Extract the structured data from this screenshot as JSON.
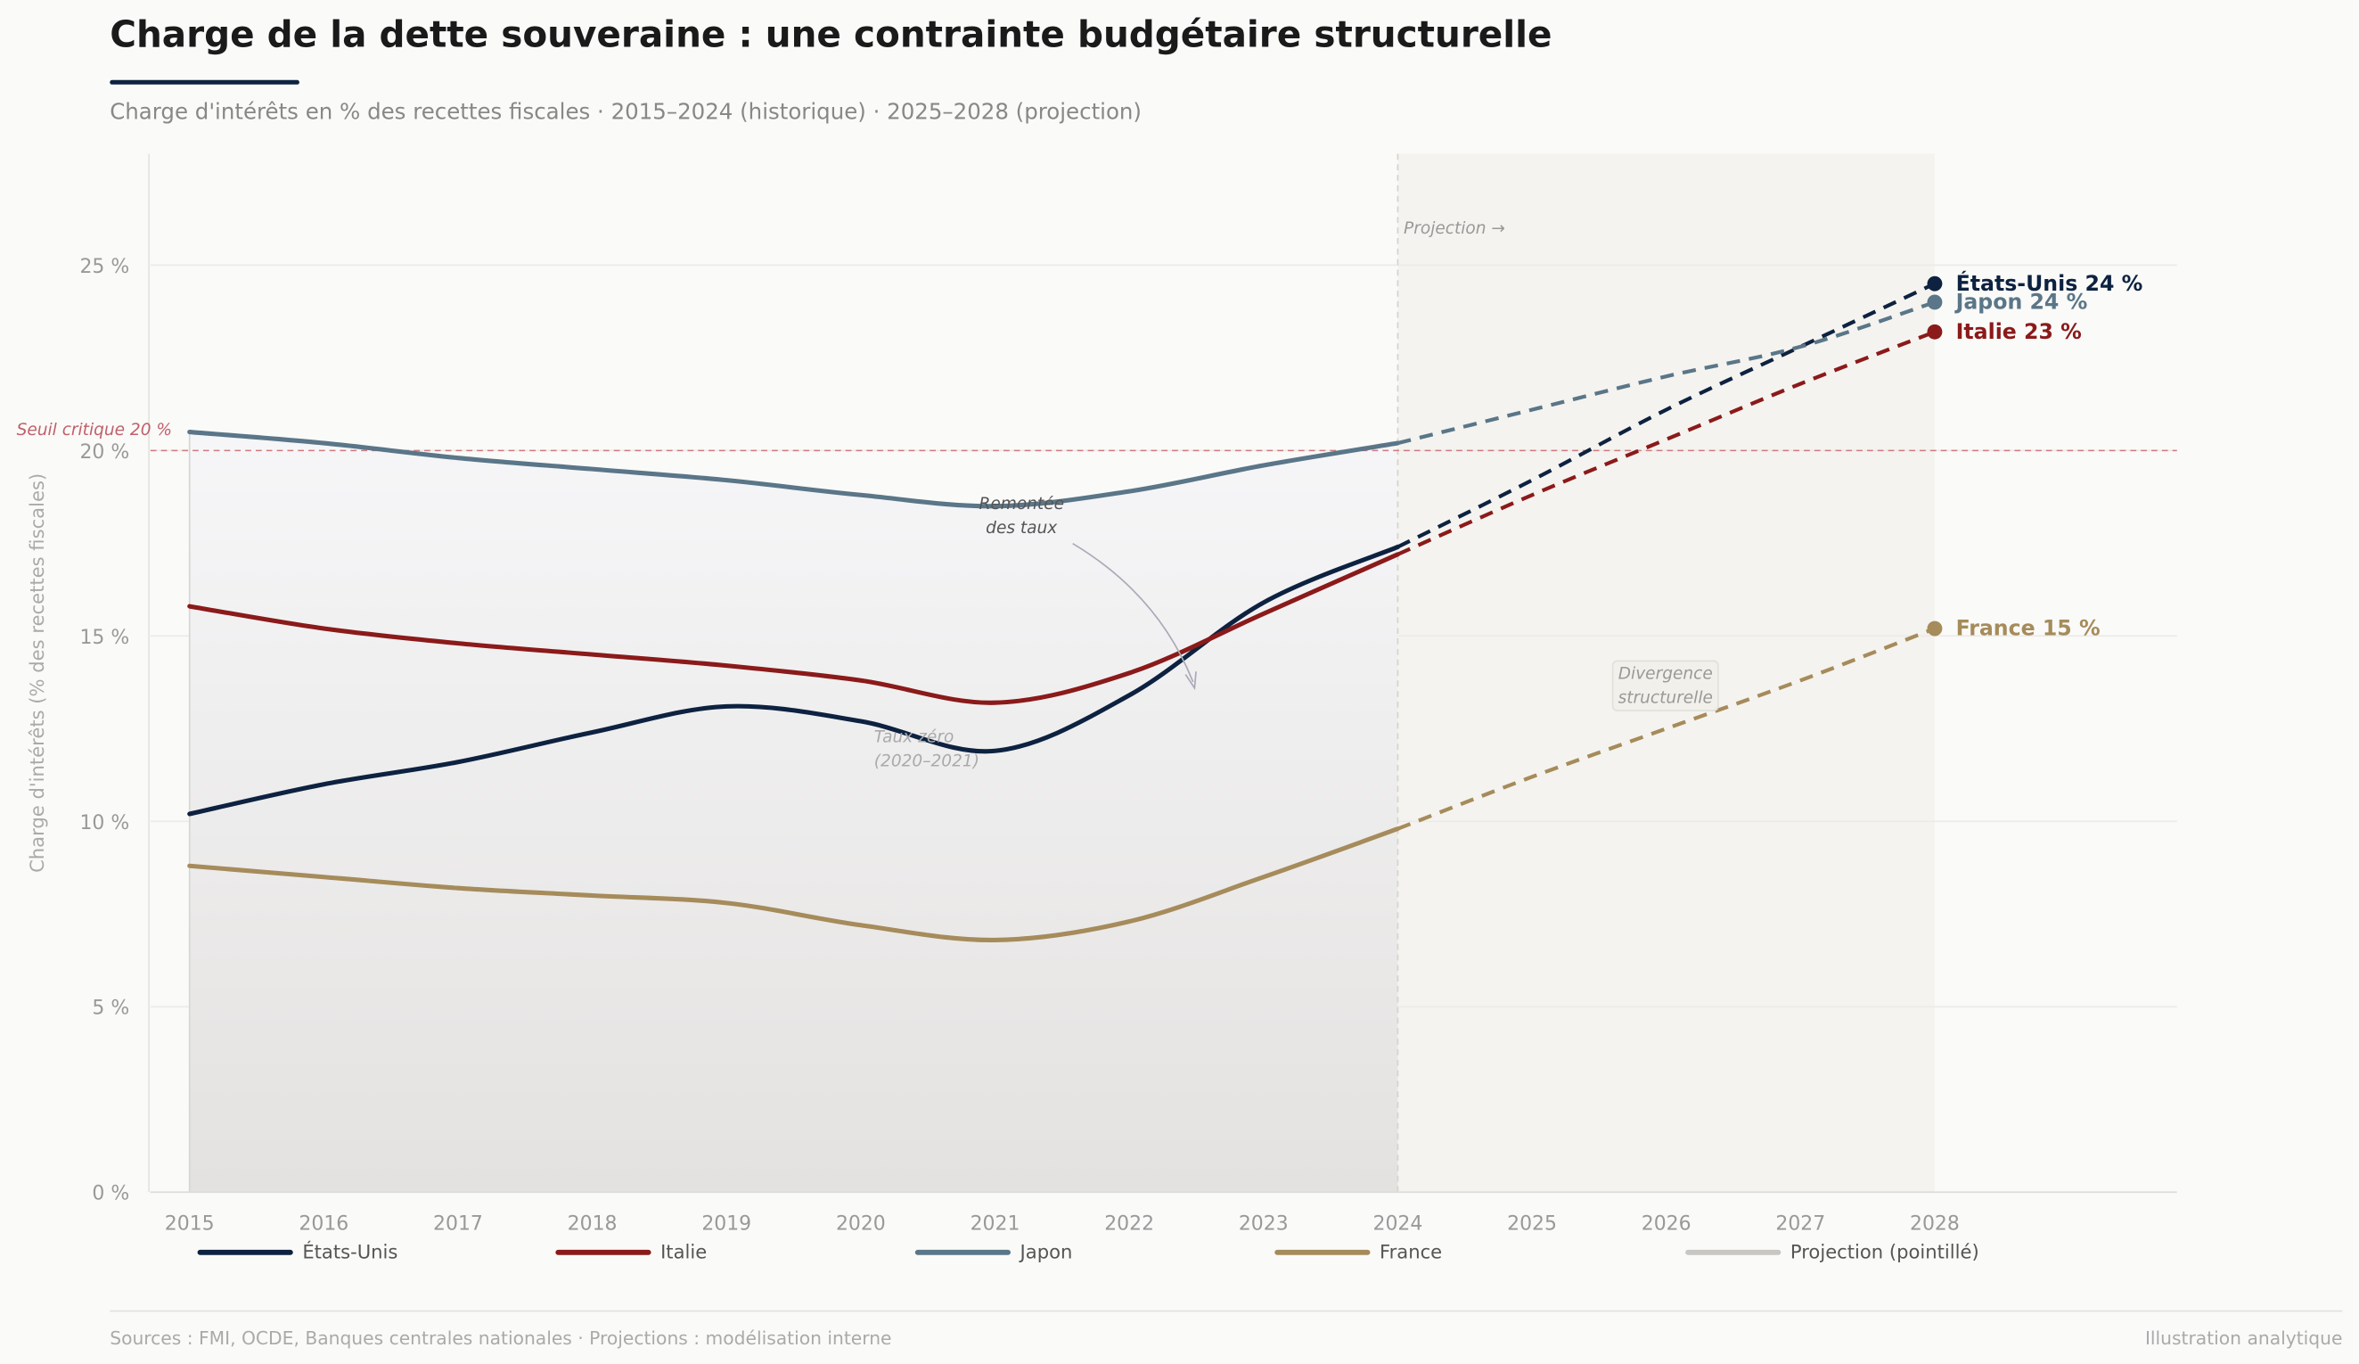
{
  "header": {
    "title": "Charge de la dette souveraine : une contrainte budgétaire structurelle",
    "subtitle": "Charge d'intérêts en % des recettes fiscales · 2015–2024 (historique) · 2025–2028 (projection)",
    "accent_color": "#0d2240"
  },
  "footer": {
    "sources": "Sources : FMI, OCDE, Banques centrales nationales · Projections : modélisation interne",
    "note": "Illustration analytique"
  },
  "chart_data": {
    "type": "line",
    "title": "",
    "xlabel": "",
    "ylabel": "Charge d'intérêts (% des recettes fiscales)",
    "x": [
      2015,
      2016,
      2017,
      2018,
      2019,
      2020,
      2021,
      2022,
      2023,
      2024,
      2025,
      2026,
      2027,
      2028
    ],
    "x_tick_labels": [
      "2015",
      "2016",
      "2017",
      "2018",
      "2019",
      "2020",
      "2021",
      "2022",
      "2023",
      "2024",
      "2025",
      "2026",
      "2027",
      "2028"
    ],
    "xlim": [
      2014.7,
      2029.8
    ],
    "ylim": [
      0,
      28
    ],
    "y_ticks": [
      0,
      5,
      10,
      15,
      20,
      25
    ],
    "y_tick_labels": [
      "0 %",
      "5 %",
      "10 %",
      "15 %",
      "20 %",
      "25 %"
    ],
    "grid": "horizontal",
    "historical_end": 2024,
    "projection_start": 2024,
    "series": [
      {
        "name": "États-Unis",
        "color": "#0d2240",
        "end_label": "États-Unis  24 %",
        "values": [
          10.2,
          11.0,
          11.6,
          12.4,
          13.1,
          12.7,
          11.9,
          13.4,
          15.9,
          17.4,
          19.2,
          21.1,
          22.8,
          24.5
        ]
      },
      {
        "name": "Italie",
        "color": "#8b1a1a",
        "end_label": "Italie  23 %",
        "values": [
          15.8,
          15.2,
          14.8,
          14.5,
          14.2,
          13.8,
          13.2,
          14.0,
          15.6,
          17.2,
          18.8,
          20.3,
          21.8,
          23.2
        ]
      },
      {
        "name": "Japon",
        "color": "#5a7688",
        "end_label": "Japon  24 %",
        "values": [
          20.5,
          20.2,
          19.8,
          19.5,
          19.2,
          18.8,
          18.5,
          18.9,
          19.6,
          20.2,
          21.1,
          22.0,
          22.8,
          24.0
        ]
      },
      {
        "name": "France",
        "color": "#a68b5b",
        "end_label": "France  15 %",
        "values": [
          8.8,
          8.5,
          8.2,
          8.0,
          7.8,
          7.2,
          6.8,
          7.3,
          8.5,
          9.8,
          11.2,
          12.5,
          13.8,
          15.2
        ]
      }
    ],
    "legend": {
      "placement": "bottom",
      "items": [
        {
          "label": "États-Unis",
          "color": "#0d2240"
        },
        {
          "label": "Italie",
          "color": "#8b1a1a"
        },
        {
          "label": "Japon",
          "color": "#5a7688"
        },
        {
          "label": "France",
          "color": "#a68b5b"
        },
        {
          "label": "Projection (pointillé)",
          "color": "#c8c6c2"
        }
      ]
    },
    "threshold": {
      "value": 20,
      "label": "Seuil critique 20 %",
      "color": "#d07a80"
    },
    "annotations": {
      "projection": "Projection →",
      "rates_up_1": "Remontée",
      "rates_up_2": "des taux",
      "zero_rates_1": "Taux zéro",
      "zero_rates_2": "(2020–2021)",
      "divergence_1": "Divergence",
      "divergence_2": "structurelle"
    }
  }
}
